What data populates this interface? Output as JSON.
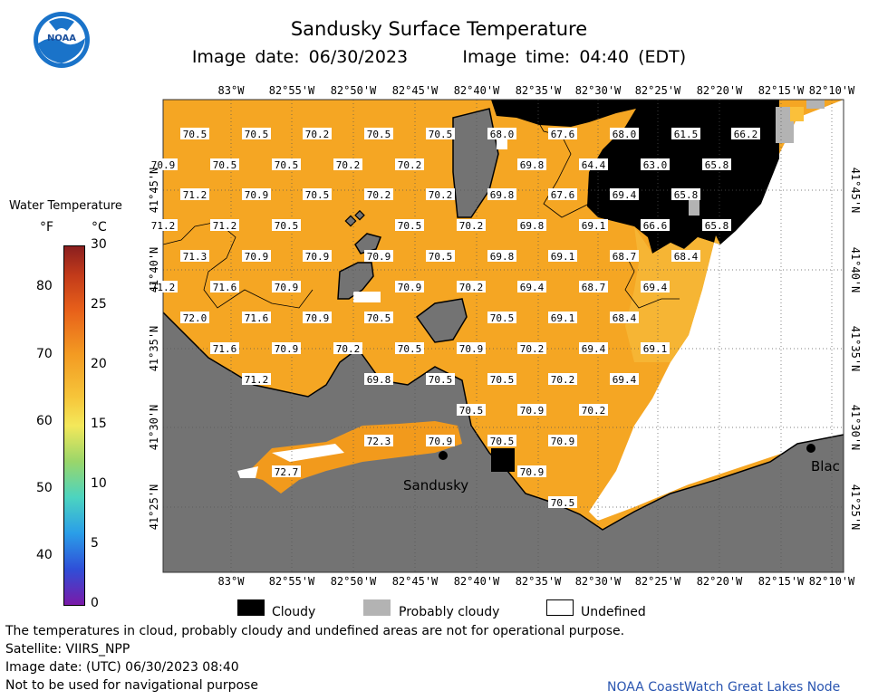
{
  "header": {
    "title": "Sandusky Surface Temperature",
    "image_date": "Image date: 06/30/2023",
    "image_time": "Image time: 04:40 (EDT)",
    "logo_text": "NOAA"
  },
  "colorbar": {
    "title": "Water Temperature",
    "unit_f": "°F",
    "unit_c": "°C",
    "f_ticks": [
      "80",
      "70",
      "60",
      "50",
      "40"
    ],
    "c_ticks": [
      "30",
      "25",
      "20",
      "15",
      "10",
      "5",
      "0"
    ]
  },
  "map": {
    "lon_labels": [
      "83°W",
      "82°55'W",
      "82°50'W",
      "82°45'W",
      "82°40'W",
      "82°35'W",
      "82°30'W",
      "82°25'W",
      "82°20'W",
      "82°15'W",
      "82°10'W"
    ],
    "lat_labels": [
      "41°45'N",
      "41°40'N",
      "41°35'N",
      "41°30'N",
      "41°25'N"
    ],
    "places": [
      "Sandusky",
      "Blac"
    ],
    "colors": {
      "water": "#f5a623",
      "water_warm": "#f29a1c",
      "cool": "#fbc03a",
      "land": "#737373",
      "cloud": "#000000",
      "probably_cloudy": "#b3b3b3",
      "undefined": "#ffffff"
    },
    "temps": [
      {
        "v": "70.5",
        "c": [
          215,
          148
        ]
      },
      {
        "v": "70.5",
        "c": [
          283,
          148
        ]
      },
      {
        "v": "70.2",
        "c": [
          350,
          148
        ]
      },
      {
        "v": "70.5",
        "c": [
          418,
          148
        ]
      },
      {
        "v": "70.5",
        "c": [
          486,
          148
        ]
      },
      {
        "v": "68.0",
        "c": [
          554,
          148
        ]
      },
      {
        "v": "67.6",
        "c": [
          621,
          148
        ]
      },
      {
        "v": "68.0",
        "c": [
          689,
          148
        ]
      },
      {
        "v": "61.5",
        "c": [
          757,
          148
        ]
      },
      {
        "v": "66.2",
        "c": [
          823,
          148
        ]
      },
      {
        "v": "70.9",
        "c": [
          180,
          182
        ]
      },
      {
        "v": "70.5",
        "c": [
          248,
          182
        ]
      },
      {
        "v": "70.5",
        "c": [
          316,
          182
        ]
      },
      {
        "v": "70.2",
        "c": [
          384,
          182
        ]
      },
      {
        "v": "70.2",
        "c": [
          452,
          182
        ]
      },
      {
        "v": "69.8",
        "c": [
          587,
          182
        ]
      },
      {
        "v": "64.4",
        "c": [
          655,
          182
        ]
      },
      {
        "v": "63.0",
        "c": [
          723,
          182
        ]
      },
      {
        "v": "65.8",
        "c": [
          791,
          182
        ]
      },
      {
        "v": "71.2",
        "c": [
          215,
          215
        ]
      },
      {
        "v": "70.9",
        "c": [
          283,
          215
        ]
      },
      {
        "v": "70.5",
        "c": [
          350,
          215
        ]
      },
      {
        "v": "70.2",
        "c": [
          418,
          215
        ]
      },
      {
        "v": "70.2",
        "c": [
          486,
          215
        ]
      },
      {
        "v": "69.8",
        "c": [
          554,
          215
        ]
      },
      {
        "v": "67.6",
        "c": [
          621,
          215
        ]
      },
      {
        "v": "69.4",
        "c": [
          689,
          215
        ]
      },
      {
        "v": "65.8",
        "c": [
          757,
          215
        ]
      },
      {
        "v": "71.2",
        "c": [
          180,
          249
        ]
      },
      {
        "v": "71.2",
        "c": [
          248,
          249
        ]
      },
      {
        "v": "70.5",
        "c": [
          316,
          249
        ]
      },
      {
        "v": "70.5",
        "c": [
          452,
          249
        ]
      },
      {
        "v": "70.2",
        "c": [
          520,
          249
        ]
      },
      {
        "v": "69.8",
        "c": [
          587,
          249
        ]
      },
      {
        "v": "69.1",
        "c": [
          655,
          249
        ]
      },
      {
        "v": "66.6",
        "c": [
          723,
          249
        ]
      },
      {
        "v": "65.8",
        "c": [
          791,
          249
        ]
      },
      {
        "v": "71.3",
        "c": [
          215,
          283
        ]
      },
      {
        "v": "70.9",
        "c": [
          283,
          283
        ]
      },
      {
        "v": "70.9",
        "c": [
          350,
          283
        ]
      },
      {
        "v": "70.9",
        "c": [
          418,
          283
        ]
      },
      {
        "v": "70.5",
        "c": [
          486,
          283
        ]
      },
      {
        "v": "69.8",
        "c": [
          554,
          283
        ]
      },
      {
        "v": "69.1",
        "c": [
          621,
          283
        ]
      },
      {
        "v": "68.7",
        "c": [
          689,
          283
        ]
      },
      {
        "v": "68.4",
        "c": [
          757,
          283
        ]
      },
      {
        "v": "71.2",
        "c": [
          180,
          317
        ]
      },
      {
        "v": "71.6",
        "c": [
          248,
          317
        ]
      },
      {
        "v": "70.9",
        "c": [
          316,
          317
        ]
      },
      {
        "v": "70.9",
        "c": [
          452,
          317
        ]
      },
      {
        "v": "70.2",
        "c": [
          520,
          317
        ]
      },
      {
        "v": "69.4",
        "c": [
          587,
          317
        ]
      },
      {
        "v": "68.7",
        "c": [
          655,
          317
        ]
      },
      {
        "v": "69.4",
        "c": [
          723,
          317
        ]
      },
      {
        "v": "72.0",
        "c": [
          215,
          351
        ]
      },
      {
        "v": "71.6",
        "c": [
          283,
          351
        ]
      },
      {
        "v": "70.9",
        "c": [
          350,
          351
        ]
      },
      {
        "v": "70.5",
        "c": [
          418,
          351
        ]
      },
      {
        "v": "70.5",
        "c": [
          554,
          351
        ]
      },
      {
        "v": "69.1",
        "c": [
          621,
          351
        ]
      },
      {
        "v": "68.4",
        "c": [
          689,
          351
        ]
      },
      {
        "v": "71.6",
        "c": [
          248,
          385
        ]
      },
      {
        "v": "70.9",
        "c": [
          316,
          385
        ]
      },
      {
        "v": "70.2",
        "c": [
          384,
          385
        ]
      },
      {
        "v": "70.5",
        "c": [
          452,
          385
        ]
      },
      {
        "v": "70.9",
        "c": [
          520,
          385
        ]
      },
      {
        "v": "70.2",
        "c": [
          587,
          385
        ]
      },
      {
        "v": "69.4",
        "c": [
          655,
          385
        ]
      },
      {
        "v": "69.1",
        "c": [
          723,
          385
        ]
      },
      {
        "v": "71.2",
        "c": [
          283,
          419
        ]
      },
      {
        "v": "69.8",
        "c": [
          418,
          419
        ]
      },
      {
        "v": "70.5",
        "c": [
          486,
          419
        ]
      },
      {
        "v": "70.5",
        "c": [
          554,
          419
        ]
      },
      {
        "v": "70.2",
        "c": [
          621,
          419
        ]
      },
      {
        "v": "69.4",
        "c": [
          689,
          419
        ]
      },
      {
        "v": "70.5",
        "c": [
          520,
          453
        ]
      },
      {
        "v": "70.9",
        "c": [
          587,
          453
        ]
      },
      {
        "v": "70.2",
        "c": [
          655,
          453
        ]
      },
      {
        "v": "72.3",
        "c": [
          418,
          487
        ]
      },
      {
        "v": "70.9",
        "c": [
          486,
          487
        ]
      },
      {
        "v": "70.5",
        "c": [
          554,
          487
        ]
      },
      {
        "v": "70.9",
        "c": [
          621,
          487
        ]
      },
      {
        "v": "72.7",
        "c": [
          316,
          521
        ]
      },
      {
        "v": "70.9",
        "c": [
          587,
          521
        ]
      },
      {
        "v": "70.5",
        "c": [
          621,
          555
        ]
      }
    ]
  },
  "legend": {
    "cloudy": "Cloudy",
    "probably_cloudy": "Probably cloudy",
    "undefined": "Undefined"
  },
  "footer": {
    "line1": "The temperatures in cloud, probably cloudy and undefined areas are not for operational purpose.",
    "line2": "Satellite: VIIRS_NPP",
    "line3": "Image date: (UTC) 06/30/2023  08:40",
    "line4": "Not to be used for navigational purpose",
    "credit": "NOAA CoastWatch Great Lakes Node"
  }
}
